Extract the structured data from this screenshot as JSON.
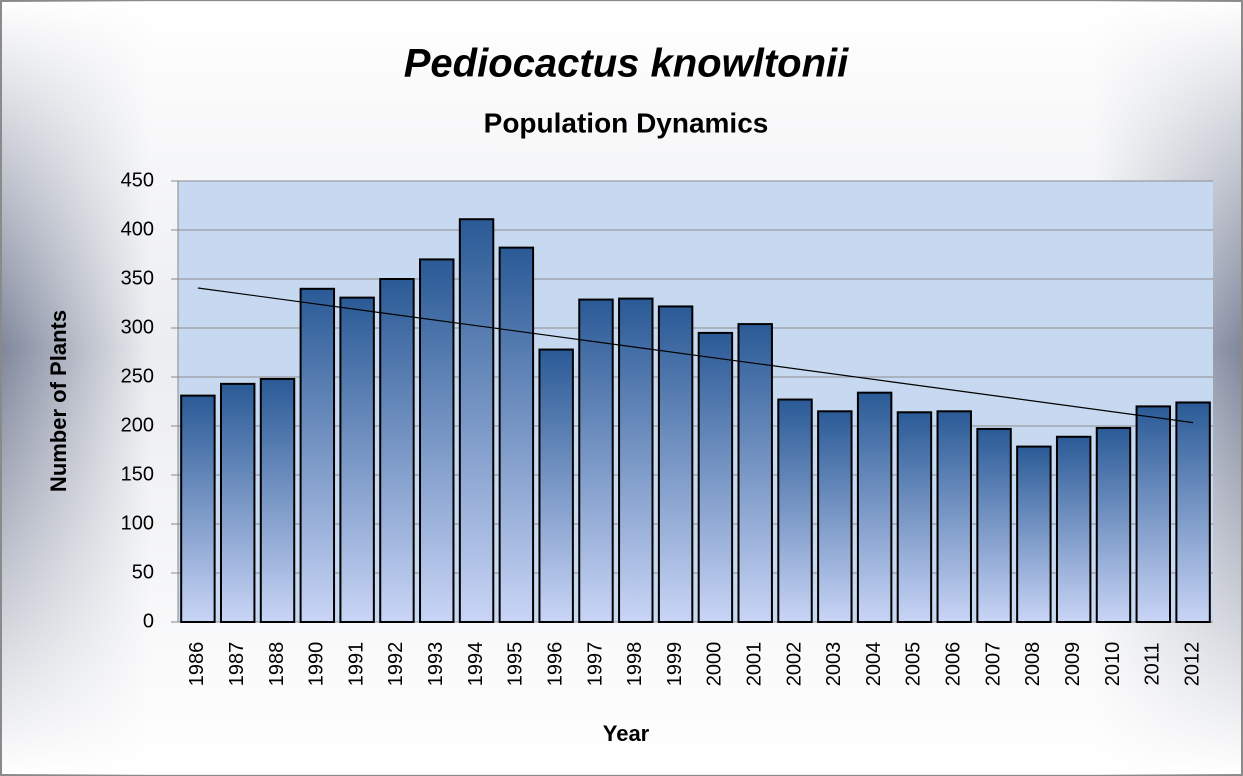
{
  "chart_data": {
    "type": "bar",
    "title": "Pediocactus knowltonii",
    "subtitle": "Population Dynamics",
    "x_label": "Year",
    "y_label": "Number of Plants",
    "categories": [
      "1986",
      "1987",
      "1988",
      "1990",
      "1991",
      "1992",
      "1993",
      "1994",
      "1995",
      "1996",
      "1997",
      "1998",
      "1999",
      "2000",
      "2001",
      "2002",
      "2003",
      "2004",
      "2005",
      "2006",
      "2007",
      "2008",
      "2009",
      "2010",
      "2011",
      "2012"
    ],
    "values": [
      231,
      243,
      248,
      340,
      331,
      350,
      370,
      411,
      382,
      278,
      329,
      330,
      322,
      295,
      304,
      227,
      215,
      234,
      214,
      215,
      197,
      179,
      189,
      198,
      220,
      224
    ],
    "color": "#2a5a96",
    "ylim": [
      0,
      450
    ],
    "yticks": [
      0,
      50,
      100,
      150,
      200,
      250,
      300,
      350,
      400,
      450
    ],
    "grid": true,
    "trendline": true
  }
}
